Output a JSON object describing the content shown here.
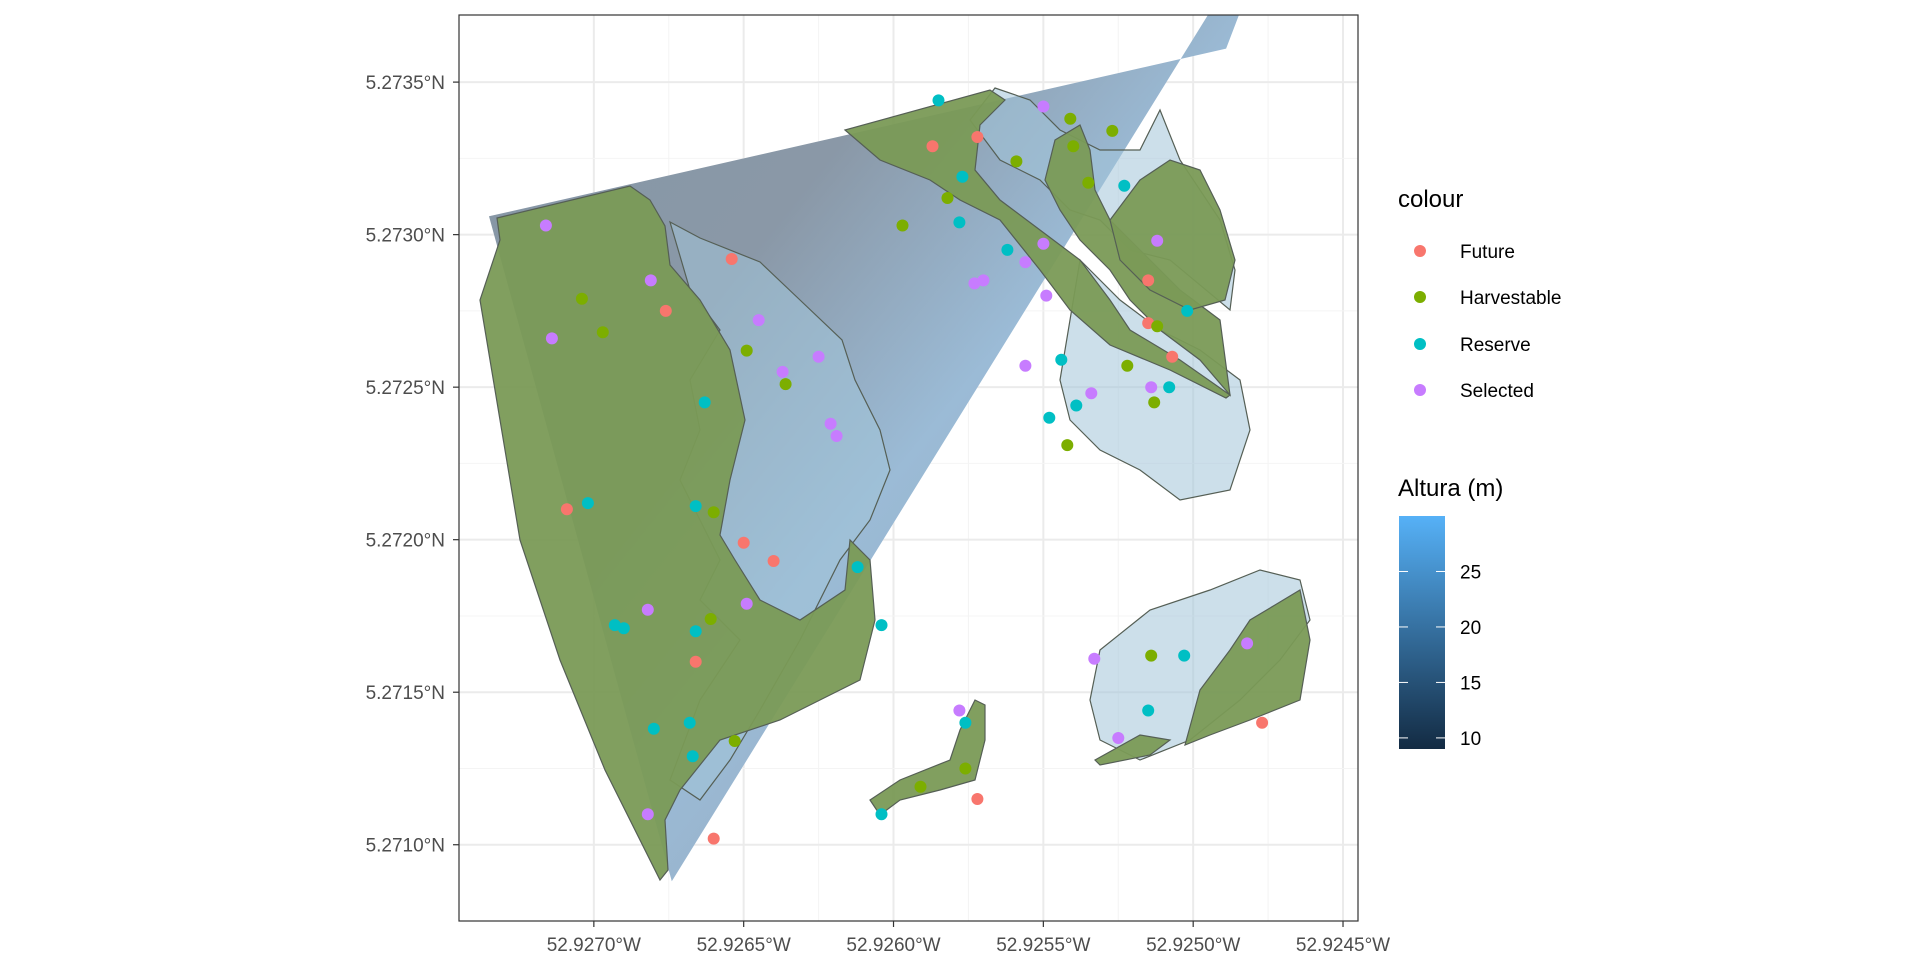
{
  "chart_data": {
    "type": "scatter",
    "title": "",
    "xlabel": "",
    "ylabel": "",
    "xlim": [
      -52.92745,
      -52.92445
    ],
    "ylim": [
      5.27075,
      5.27372
    ],
    "x_ticks": [
      -52.927,
      -52.9265,
      -52.926,
      -52.9255,
      -52.925,
      -52.9245
    ],
    "x_tick_labels": [
      "52.9270°W",
      "52.9265°W",
      "52.9260°W",
      "52.9255°W",
      "52.9250°W",
      "52.9245°W"
    ],
    "y_ticks": [
      5.271,
      5.2715,
      5.272,
      5.2725,
      5.273,
      5.2735
    ],
    "y_tick_labels": [
      "5.2710°N",
      "5.2715°N",
      "5.2720°N",
      "5.2725°N",
      "5.2730°N",
      "5.2735°N"
    ],
    "grid": true,
    "legend_position": "right",
    "colour_legend": {
      "title": "colour",
      "items": [
        {
          "label": "Future",
          "color": "#F8766D"
        },
        {
          "label": "Harvestable",
          "color": "#7CAE00"
        },
        {
          "label": "Reserve",
          "color": "#00BFC4"
        },
        {
          "label": "Selected",
          "color": "#C77CFF"
        }
      ]
    },
    "fill_legend": {
      "title": "Altura (m)",
      "range": [
        9,
        30
      ],
      "breaks": [
        10,
        15,
        20,
        25
      ],
      "break_labels": [
        "10",
        "15",
        "20",
        "25"
      ],
      "color_low": "#132B43",
      "color_high": "#56B1F7"
    },
    "raster_corners": [
      [
        -52.92735,
        5.27306
      ],
      [
        -52.92489,
        5.27361
      ],
      [
        -52.92468,
        5.27415
      ],
      [
        -52.92674,
        5.27088
      ]
    ],
    "series": [
      {
        "name": "Future",
        "color": "#F8766D",
        "points": [
          [
            -52.92587,
            5.27329
          ],
          [
            -52.92572,
            5.27332
          ],
          [
            -52.92654,
            5.27292
          ],
          [
            -52.92676,
            5.27275
          ],
          [
            -52.92709,
            5.2721
          ],
          [
            -52.9265,
            5.27199
          ],
          [
            -52.9264,
            5.27193
          ],
          [
            -52.92666,
            5.2716
          ],
          [
            -52.9266,
            5.27102
          ],
          [
            -52.92572,
            5.27115
          ],
          [
            -52.92515,
            5.27285
          ],
          [
            -52.92515,
            5.27271
          ],
          [
            -52.92507,
            5.2726
          ],
          [
            -52.92477,
            5.2714
          ]
        ]
      },
      {
        "name": "Harvestable",
        "color": "#7CAE00",
        "points": [
          [
            -52.92541,
            5.27338
          ],
          [
            -52.92527,
            5.27334
          ],
          [
            -52.9254,
            5.27329
          ],
          [
            -52.92559,
            5.27324
          ],
          [
            -52.92535,
            5.27317
          ],
          [
            -52.92582,
            5.27312
          ],
          [
            -52.92597,
            5.27303
          ],
          [
            -52.92704,
            5.27279
          ],
          [
            -52.92697,
            5.27268
          ],
          [
            -52.92649,
            5.27262
          ],
          [
            -52.92636,
            5.27251
          ],
          [
            -52.9266,
            5.27209
          ],
          [
            -52.92661,
            5.27174
          ],
          [
            -52.92653,
            5.27134
          ],
          [
            -52.92512,
            5.2727
          ],
          [
            -52.92522,
            5.27257
          ],
          [
            -52.92513,
            5.27245
          ],
          [
            -52.92542,
            5.27231
          ],
          [
            -52.92591,
            5.27119
          ],
          [
            -52.92576,
            5.27125
          ],
          [
            -52.92514,
            5.27162
          ]
        ]
      },
      {
        "name": "Reserve",
        "color": "#00BFC4",
        "points": [
          [
            -52.92585,
            5.27344
          ],
          [
            -52.92577,
            5.27319
          ],
          [
            -52.92523,
            5.27316
          ],
          [
            -52.92578,
            5.27304
          ],
          [
            -52.92562,
            5.27295
          ],
          [
            -52.92502,
            5.27275
          ],
          [
            -52.92544,
            5.27259
          ],
          [
            -52.92508,
            5.2725
          ],
          [
            -52.92663,
            5.27245
          ],
          [
            -52.92539,
            5.27244
          ],
          [
            -52.92548,
            5.2724
          ],
          [
            -52.92702,
            5.27212
          ],
          [
            -52.92666,
            5.27211
          ],
          [
            -52.92612,
            5.27191
          ],
          [
            -52.92693,
            5.27172
          ],
          [
            -52.9269,
            5.27171
          ],
          [
            -52.92666,
            5.2717
          ],
          [
            -52.92604,
            5.27172
          ],
          [
            -52.9268,
            5.27138
          ],
          [
            -52.92668,
            5.2714
          ],
          [
            -52.92667,
            5.27129
          ],
          [
            -52.92576,
            5.2714
          ],
          [
            -52.92604,
            5.2711
          ],
          [
            -52.92503,
            5.27162
          ],
          [
            -52.92515,
            5.27144
          ]
        ]
      },
      {
        "name": "Selected",
        "color": "#C77CFF",
        "points": [
          [
            -52.9255,
            5.27342
          ],
          [
            -52.92716,
            5.27303
          ],
          [
            -52.9255,
            5.27297
          ],
          [
            -52.92512,
            5.27298
          ],
          [
            -52.92556,
            5.27291
          ],
          [
            -52.92681,
            5.27285
          ],
          [
            -52.92573,
            5.27284
          ],
          [
            -52.9257,
            5.27285
          ],
          [
            -52.92549,
            5.2728
          ],
          [
            -52.92714,
            5.27266
          ],
          [
            -52.92645,
            5.27272
          ],
          [
            -52.92625,
            5.2726
          ],
          [
            -52.92637,
            5.27255
          ],
          [
            -52.92556,
            5.27257
          ],
          [
            -52.92514,
            5.2725
          ],
          [
            -52.92534,
            5.27248
          ],
          [
            -52.92621,
            5.27238
          ],
          [
            -52.92619,
            5.27234
          ],
          [
            -52.92682,
            5.27177
          ],
          [
            -52.92649,
            5.27179
          ],
          [
            -52.92533,
            5.27161
          ],
          [
            -52.92578,
            5.27144
          ],
          [
            -52.92525,
            5.27135
          ],
          [
            -52.92482,
            5.27166
          ],
          [
            -52.92682,
            5.2711
          ]
        ]
      }
    ]
  }
}
